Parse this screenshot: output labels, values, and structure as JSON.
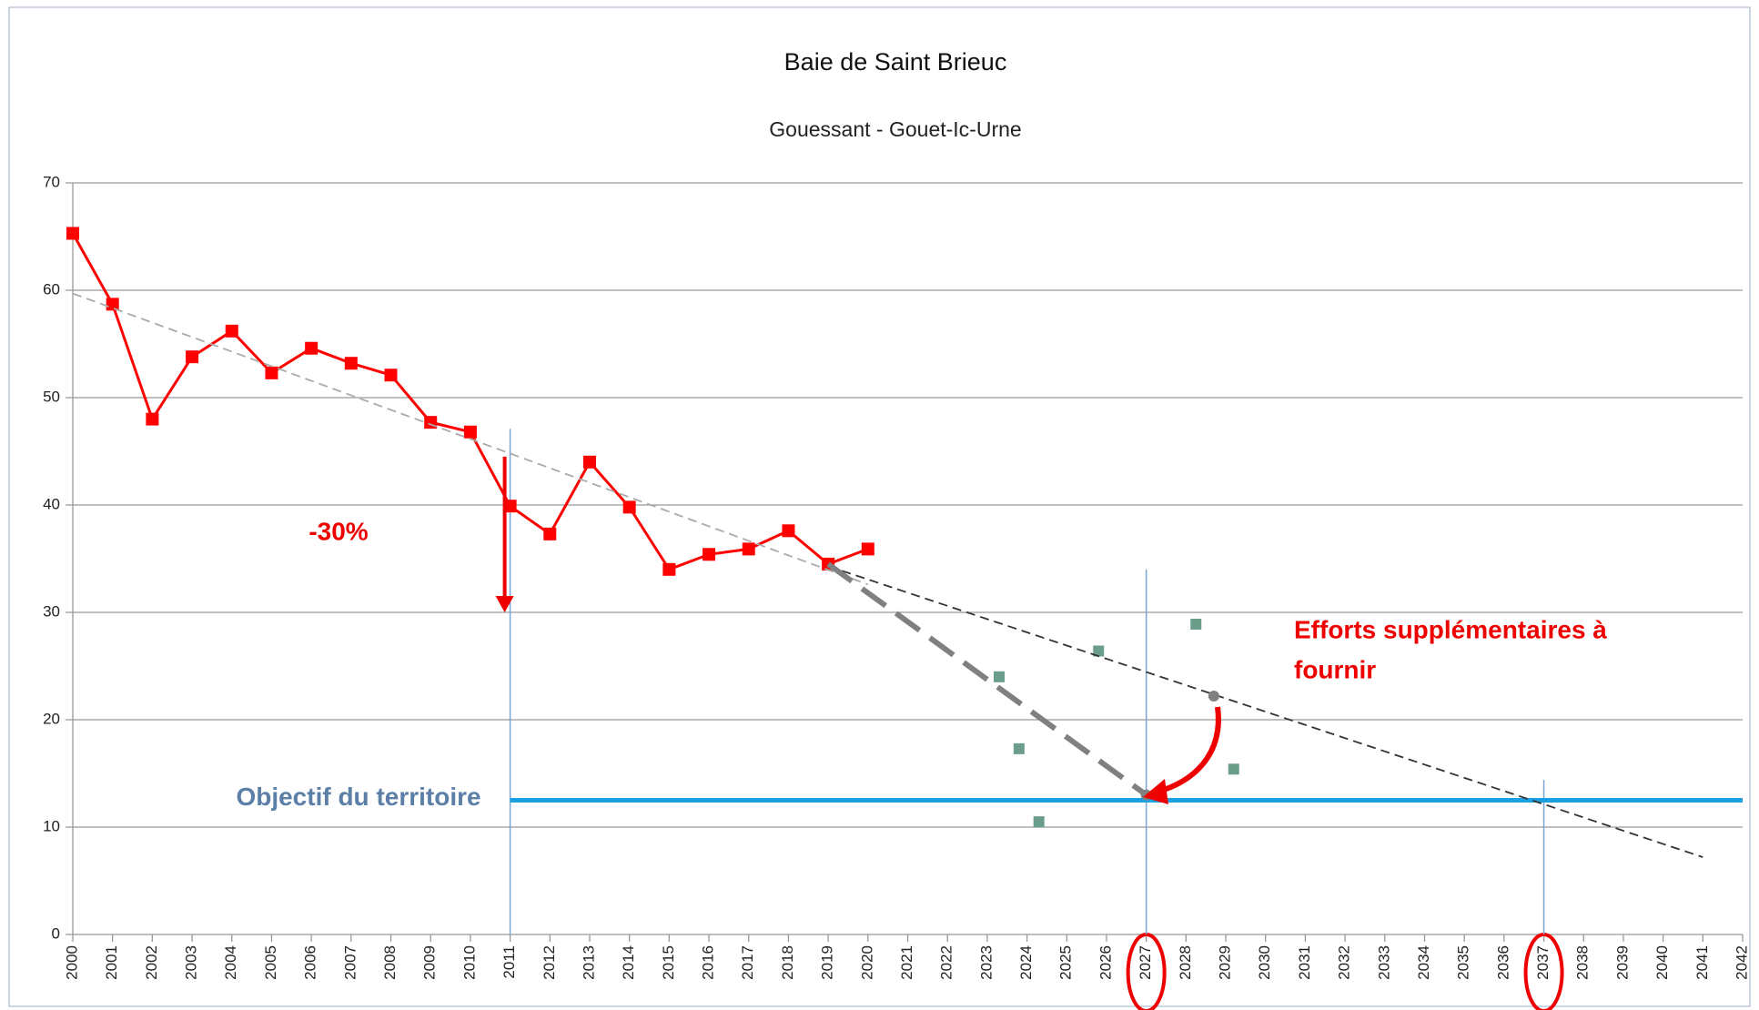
{
  "chart_data": {
    "type": "line",
    "title": "Baie de Saint Brieuc",
    "subtitle": "Gouessant - Gouet-Ic-Urne",
    "xlim": [
      2000,
      2042
    ],
    "xticks": [
      2000,
      2001,
      2002,
      2003,
      2004,
      2005,
      2006,
      2007,
      2008,
      2009,
      2010,
      2011,
      2012,
      2013,
      2014,
      2015,
      2016,
      2017,
      2018,
      2019,
      2020,
      2021,
      2022,
      2023,
      2024,
      2025,
      2026,
      2027,
      2028,
      2029,
      2030,
      2031,
      2032,
      2033,
      2034,
      2035,
      2036,
      2037,
      2038,
      2039,
      2040,
      2041,
      2042
    ],
    "ylim": [
      0,
      70
    ],
    "yticks": [
      0,
      10,
      20,
      30,
      40,
      50,
      60,
      70
    ],
    "grid": true,
    "series": [
      {
        "style": "line-markers",
        "color": "#ff0000",
        "x": [
          2000,
          2001,
          2002,
          2003,
          2004,
          2005,
          2006,
          2007,
          2008,
          2009,
          2010,
          2011,
          2012,
          2013,
          2014,
          2015,
          2016,
          2017,
          2018,
          2019,
          2020
        ],
        "values": [
          65.3,
          58.7,
          48,
          53.8,
          56.2,
          52.3,
          54.6,
          53.2,
          52.1,
          47.7,
          46.8,
          39.9,
          37.3,
          44,
          39.8,
          34,
          35.4,
          35.9,
          37.6,
          34.5,
          35.9
        ]
      },
      {
        "style": "markers",
        "color": "#6b9e8a",
        "x": [
          2023.3,
          2023.8,
          2024.3,
          2025.8,
          2028.25,
          2029.2
        ],
        "values": [
          24,
          17.3,
          10.5,
          26.4,
          28.9,
          15.4
        ]
      },
      {
        "style": "thin-dashed",
        "color": "#aaaaaa",
        "x": [
          2000,
          2020
        ],
        "values": [
          59.7,
          32.6
        ]
      },
      {
        "style": "thin-dashed",
        "color": "#333333",
        "x": [
          2019,
          2041
        ],
        "values": [
          34.3,
          7.2
        ]
      },
      {
        "style": "thick-dashed",
        "color": "#808080",
        "x": [
          2019,
          2027
        ],
        "values": [
          34.5,
          13
        ]
      },
      {
        "style": "points",
        "color": "#808080",
        "x": [
          2027,
          2028.7
        ],
        "values": [
          13,
          22.2
        ]
      }
    ],
    "objective": {
      "label": "Objectif du territoire",
      "value": 12.5,
      "x": [
        2011,
        2042
      ],
      "color": "#1ba1e2"
    },
    "vlines": [
      {
        "x": 2011,
        "top": 47.1
      },
      {
        "x": 2027,
        "top": 34
      },
      {
        "x": 2037,
        "top": 14.4
      }
    ],
    "reduction": {
      "label": "-30%",
      "x": 2011,
      "from": 44.5,
      "to": 30
    },
    "effort_label": [
      "Efforts supplémentaires à",
      "fournir"
    ],
    "highlighted_ticks": [
      27,
      37
    ]
  }
}
